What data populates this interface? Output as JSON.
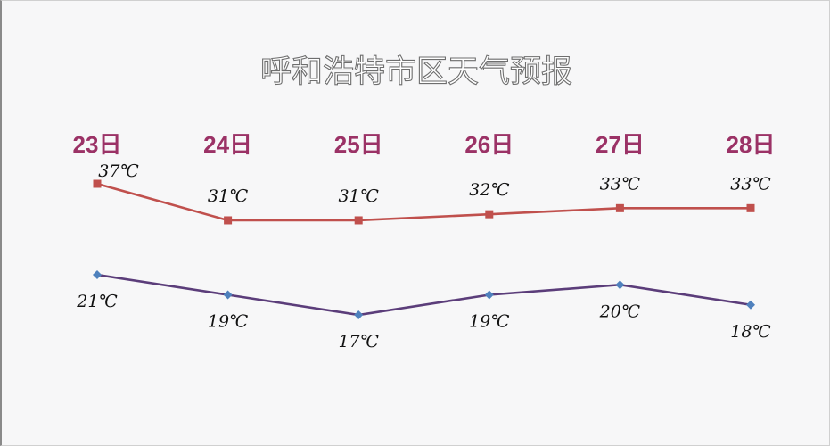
{
  "chart_data": {
    "type": "line",
    "title": "呼和浩特市区天气预报",
    "categories": [
      "23日",
      "24日",
      "25日",
      "26日",
      "27日",
      "28日"
    ],
    "unit": "℃",
    "series": [
      {
        "key": "high",
        "values": [
          37,
          31,
          31,
          32,
          33,
          33
        ],
        "color": "#c0504d",
        "marker": "square"
      },
      {
        "key": "low",
        "values": [
          21,
          19,
          17,
          19,
          20,
          18
        ],
        "color": "#5b3d7a",
        "marker": "diamond",
        "marker_color": "#4f81bd"
      }
    ],
    "date_label_color": "#9b3266",
    "grid": false,
    "legend": "none"
  }
}
